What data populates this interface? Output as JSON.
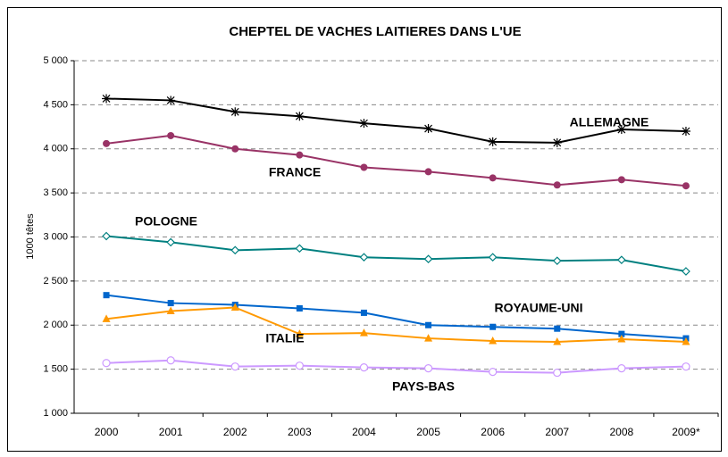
{
  "chart_data": {
    "type": "line",
    "title": "CHEPTEL DE VACHES LAITIERES DANS L'UE",
    "y_label": "1000 têtes",
    "categories": [
      "2000",
      "2001",
      "2002",
      "2003",
      "2004",
      "2005",
      "2006",
      "2007",
      "2008",
      "2009*"
    ],
    "series": [
      {
        "name": "ALLEMAGNE",
        "color": "#000000",
        "marker": "star",
        "values": [
          4570,
          4550,
          4420,
          4370,
          4290,
          4230,
          4080,
          4070,
          4220,
          4200
        ]
      },
      {
        "name": "FRANCE",
        "color": "#993366",
        "marker": "circle",
        "values": [
          4060,
          4150,
          4000,
          3930,
          3790,
          3740,
          3670,
          3590,
          3650,
          3580
        ]
      },
      {
        "name": "POLOGNE",
        "color": "#008080",
        "marker": "open-diamond",
        "values": [
          3010,
          2940,
          2850,
          2870,
          2770,
          2750,
          2770,
          2730,
          2740,
          2610
        ]
      },
      {
        "name": "ROYAUME-UNI",
        "color": "#0066cc",
        "marker": "square",
        "values": [
          2340,
          2250,
          2230,
          2190,
          2140,
          2000,
          1980,
          1960,
          1900,
          1850
        ]
      },
      {
        "name": "ITALIE",
        "color": "#ff9900",
        "marker": "triangle",
        "values": [
          2070,
          2160,
          2200,
          1900,
          1910,
          1850,
          1820,
          1810,
          1840,
          1810
        ]
      },
      {
        "name": "PAYS-BAS",
        "color": "#cc99ff",
        "marker": "open-circle",
        "values": [
          1570,
          1600,
          1530,
          1540,
          1520,
          1510,
          1470,
          1460,
          1510,
          1530
        ]
      }
    ],
    "ylim": [
      1000,
      5000
    ],
    "yticks": [
      {
        "value": 1000,
        "label": "1 000"
      },
      {
        "value": 1500,
        "label": "1 500"
      },
      {
        "value": 2000,
        "label": "2 000"
      },
      {
        "value": 2500,
        "label": "2 500"
      },
      {
        "value": 3000,
        "label": "3 000"
      },
      {
        "value": 3500,
        "label": "3 500"
      },
      {
        "value": 4000,
        "label": "4 000"
      },
      {
        "value": 4500,
        "label": "4 500"
      },
      {
        "value": 5000,
        "label": "5 000"
      }
    ],
    "grid": true
  }
}
